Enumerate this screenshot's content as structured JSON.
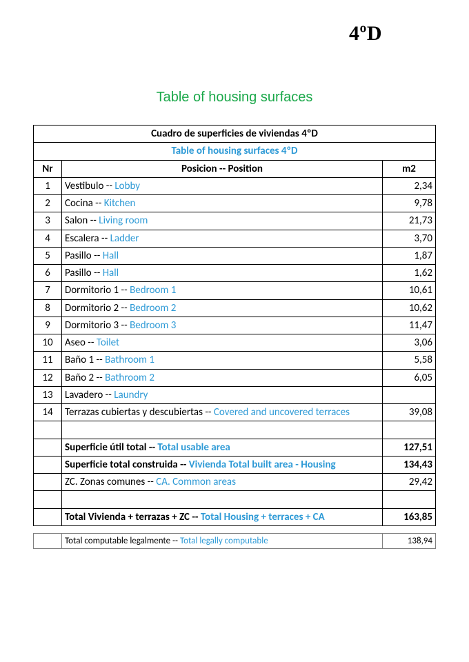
{
  "unit_label": "4ºD",
  "green_title": "Table of housing surfaces",
  "table": {
    "title_es": "Cuadro de superficies de viviendas 4ºD",
    "title_en": "Table of housing surfaces 4ºD",
    "header_nr": "Nr",
    "header_pos": "Posicion -- Position",
    "header_m2": "m2",
    "accent_color": "#2e9ad6",
    "border_color": "#000000",
    "rows": [
      {
        "nr": "1",
        "es": "Vestibulo -- ",
        "en": "Lobby",
        "m2": "2,34"
      },
      {
        "nr": "2",
        "es": "Cocina --  ",
        "en": "Kitchen",
        "m2": "9,78"
      },
      {
        "nr": "3",
        "es": "Salon -- ",
        "en": "Living room",
        "m2": "21,73"
      },
      {
        "nr": "4",
        "es": "Escalera -- ",
        "en": "Ladder",
        "m2": "3,70"
      },
      {
        "nr": "5",
        "es": "Pasillo -- ",
        "en": "Hall",
        "m2": "1,87"
      },
      {
        "nr": "6",
        "es": "Pasillo -- ",
        "en": "Hall",
        "m2": "1,62"
      },
      {
        "nr": "7",
        "es": "Dormitorio 1 -- ",
        "en": "Bedroom 1",
        "m2": "10,61"
      },
      {
        "nr": "8",
        "es": "Dormitorio 2 -- ",
        "en": "Bedroom 2",
        "m2": "10,62"
      },
      {
        "nr": "9",
        "es": "Dormitorio 3 -- ",
        "en": "Bedroom 3",
        "m2": "11,47"
      },
      {
        "nr": "10",
        "es": "Aseo -- ",
        "en": "Toilet",
        "m2": "3,06"
      },
      {
        "nr": "11",
        "es": "Baño 1 -- ",
        "en": "Bathroom 1",
        "m2": "5,58"
      },
      {
        "nr": "12",
        "es": "Baño 2 -- ",
        "en": "Bathroom 2",
        "m2": "6,05"
      },
      {
        "nr": "13",
        "es": "Lavadero -- ",
        "en": "Laundry",
        "m2": ""
      },
      {
        "nr": "14",
        "es": "Terrazas cubiertas y descubiertas -- ",
        "en": "Covered and uncovered terraces",
        "m2": "39,08"
      }
    ],
    "totals": [
      {
        "es": "Superficie útil total -- ",
        "en": "Total usable area",
        "m2": "127,51",
        "bold": true
      },
      {
        "es": "Superficie total construida -- ",
        "en": "Vivienda Total built area - Housing",
        "m2": "134,43",
        "bold": true
      },
      {
        "es": "ZC. Zonas comunes  -- ",
        "en": " CA. Common areas",
        "m2": "29,42",
        "bold": false
      },
      {
        "es": "Total Vivienda + terrazas + ZC  -- ",
        "en": " Total Housing + terraces + CA",
        "m2": "163,85",
        "bold": true
      }
    ],
    "footer": {
      "es": "Total computable legalmente -- ",
      "en": "Total legally computable",
      "m2": "138,94"
    }
  }
}
